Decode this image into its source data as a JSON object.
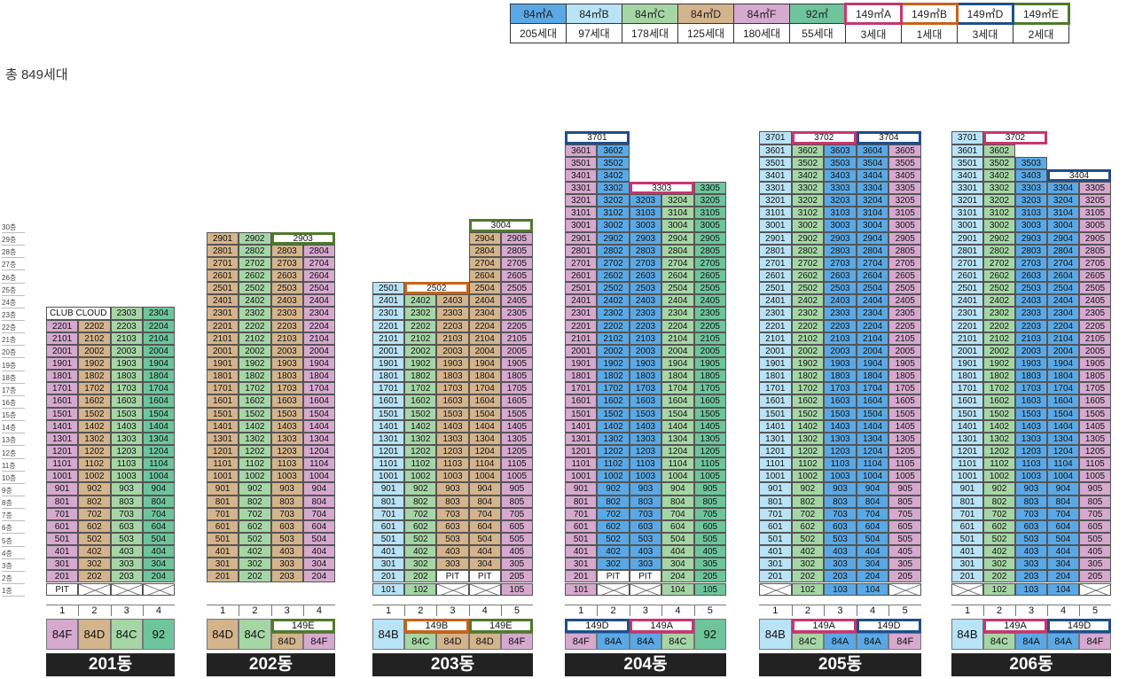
{
  "colors": {
    "84A": "#5aa9e6",
    "84B": "#b9e3f6",
    "84C": "#a6d6a6",
    "84D": "#d4b48c",
    "84F": "#d6a9cf",
    "92": "#6ec59c",
    "149A": "#c7366f",
    "149B": "#c8621a",
    "149D": "#1f4e8c",
    "149E": "#4f7a2b"
  },
  "legend": [
    {
      "type": "84A",
      "label": "84㎡A",
      "count": "205세대"
    },
    {
      "type": "84B",
      "label": "84㎡B",
      "count": "97세대"
    },
    {
      "type": "84C",
      "label": "84㎡C",
      "count": "178세대"
    },
    {
      "type": "84D",
      "label": "84㎡D",
      "count": "125세대"
    },
    {
      "type": "84F",
      "label": "84㎡F",
      "count": "180세대"
    },
    {
      "type": "92",
      "label": "92㎡",
      "count": "55세대"
    },
    {
      "type": "149A",
      "label": "149㎡A",
      "count": "3세대",
      "outline": true
    },
    {
      "type": "149B",
      "label": "149㎡B",
      "count": "1세대",
      "outline": true
    },
    {
      "type": "149D",
      "label": "149㎡D",
      "count": "3세대",
      "outline": true
    },
    {
      "type": "149E",
      "label": "149㎡E",
      "count": "2세대",
      "outline": true
    }
  ],
  "total": "총 849세대",
  "floor_labels": [
    "30층",
    "29층",
    "28층",
    "27층",
    "26층",
    "25층",
    "24층",
    "23층",
    "22층",
    "21층",
    "20층",
    "19층",
    "18층",
    "17층",
    "16층",
    "15층",
    "14층",
    "13층",
    "12층",
    "11층",
    "10층",
    "9층",
    "8층",
    "7층",
    "6층",
    "5층",
    "4층",
    "3층",
    "2층",
    "1층"
  ],
  "buildings": [
    {
      "name": "201동",
      "lines": [
        "1",
        "2",
        "3",
        "4"
      ],
      "types": [
        "84F",
        "84D",
        "84C",
        "92"
      ],
      "tops": [
        22,
        22,
        23,
        23
      ],
      "bottom": [
        [
          "PIT"
        ],
        [
          "X"
        ],
        [
          "X"
        ],
        [
          "X"
        ]
      ],
      "specials": [
        {
          "text": "CLUB CLOUD",
          "floor": 23,
          "from": 0,
          "to": 1,
          "kind": "club"
        }
      ],
      "labels": [
        {
          "text": "84F",
          "from": 0,
          "to": 0,
          "type": "84F"
        },
        {
          "text": "84D",
          "from": 1,
          "to": 1,
          "type": "84D"
        },
        {
          "text": "84C",
          "from": 2,
          "to": 2,
          "type": "84C"
        },
        {
          "text": "92",
          "from": 3,
          "to": 3,
          "type": "92"
        }
      ]
    },
    {
      "name": "202동",
      "lines": [
        "1",
        "2",
        "3",
        "4"
      ],
      "types": [
        "84D",
        "84C",
        "84D",
        "84F"
      ],
      "tops": [
        29,
        29,
        28,
        28
      ],
      "bottom": [
        [],
        [],
        [],
        []
      ],
      "start": 2,
      "specials": [
        {
          "text": "2903",
          "floor": 29,
          "from": 2,
          "to": 3,
          "kind": "149E"
        }
      ],
      "labels": [
        {
          "text": "84D",
          "from": 0,
          "to": 0,
          "type": "84D"
        },
        {
          "text": "84C",
          "from": 1,
          "to": 1,
          "type": "84C"
        },
        {
          "text": "149E",
          "from": 2,
          "to": 3,
          "type": "149E",
          "outline": true,
          "sub": [
            "84D",
            "84F"
          ]
        }
      ]
    },
    {
      "name": "203동",
      "lines": [
        "1",
        "2",
        "3",
        "4",
        "5"
      ],
      "types": [
        "84B",
        "84C",
        "84D",
        "84D",
        "84F"
      ],
      "tops": [
        25,
        24,
        24,
        29,
        29
      ],
      "bottom": [
        [
          "101"
        ],
        [
          "102"
        ],
        [
          "X"
        ],
        [
          "X"
        ],
        [
          "105"
        ]
      ],
      "row2": [
        "201",
        "202",
        "PIT",
        "PIT",
        "205"
      ],
      "specials": [
        {
          "text": "2502",
          "floor": 25,
          "from": 1,
          "to": 2,
          "kind": "149B"
        },
        {
          "text": "3004",
          "floor": 30,
          "from": 3,
          "to": 4,
          "kind": "149E"
        }
      ],
      "labels": [
        {
          "text": "84B",
          "from": 0,
          "to": 0,
          "type": "84B"
        },
        {
          "text": "149B",
          "from": 1,
          "to": 2,
          "type": "149B",
          "outline": true,
          "sub": [
            "84C",
            "84D"
          ]
        },
        {
          "text": "149E",
          "from": 3,
          "to": 4,
          "type": "149E",
          "outline": true,
          "sub": [
            "84D",
            "84F"
          ]
        }
      ]
    },
    {
      "name": "204동",
      "lines": [
        "1",
        "2",
        "3",
        "4",
        "5"
      ],
      "types": [
        "84F",
        "84A",
        "84A",
        "84C",
        "92"
      ],
      "tops": [
        36,
        36,
        32,
        32,
        33
      ],
      "bottom": [
        [
          "101"
        ],
        [
          "X"
        ],
        [
          "X"
        ],
        [
          "104"
        ],
        [
          "105"
        ]
      ],
      "row2": [
        "201",
        "PIT",
        "PIT",
        "204",
        "205"
      ],
      "specials": [
        {
          "text": "3701",
          "floor": 37,
          "from": 0,
          "to": 1,
          "kind": "149D"
        },
        {
          "text": "3303",
          "floor": 33,
          "from": 2,
          "to": 3,
          "kind": "149A"
        }
      ],
      "labels": [
        {
          "text": "149D",
          "from": 0,
          "to": 1,
          "type": "149D",
          "outline": true,
          "sub": [
            "84F",
            "84A"
          ]
        },
        {
          "text": "149A",
          "from": 2,
          "to": 3,
          "type": "149A",
          "outline": true,
          "sub": [
            "84A",
            "84C"
          ]
        },
        {
          "text": "92",
          "from": 4,
          "to": 4,
          "type": "92"
        }
      ]
    },
    {
      "name": "205동",
      "lines": [
        "1",
        "2",
        "3",
        "4",
        "5"
      ],
      "types": [
        "84B",
        "84C",
        "84A",
        "84A",
        "84F"
      ],
      "tops": [
        37,
        36,
        36,
        36,
        36
      ],
      "bottom": [
        [
          "X"
        ],
        [
          "102"
        ],
        [
          "103"
        ],
        [
          "104"
        ],
        [
          "X"
        ]
      ],
      "specials": [
        {
          "text": "3702",
          "floor": 37,
          "from": 1,
          "to": 2,
          "kind": "149A"
        },
        {
          "text": "3704",
          "floor": 37,
          "from": 3,
          "to": 4,
          "kind": "149D"
        }
      ],
      "labels": [
        {
          "text": "84B",
          "from": 0,
          "to": 0,
          "type": "84B"
        },
        {
          "text": "149A",
          "from": 1,
          "to": 2,
          "type": "149A",
          "outline": true,
          "sub": [
            "84C",
            "84A"
          ]
        },
        {
          "text": "149D",
          "from": 3,
          "to": 4,
          "type": "149D",
          "outline": true,
          "sub": [
            "84A",
            "84F"
          ]
        }
      ]
    },
    {
      "name": "206동",
      "lines": [
        "1",
        "2",
        "3",
        "4",
        "5"
      ],
      "types": [
        "84B",
        "84C",
        "84A",
        "84A",
        "84F"
      ],
      "tops": [
        37,
        36,
        35,
        33,
        33
      ],
      "bottom": [
        [
          "X"
        ],
        [
          "102"
        ],
        [
          "103"
        ],
        [
          "104"
        ],
        [
          "X"
        ]
      ],
      "specials": [
        {
          "text": "3702",
          "floor": 37,
          "from": 1,
          "to": 2,
          "kind": "149A"
        },
        {
          "text": "3404",
          "floor": 34,
          "from": 3,
          "to": 4,
          "kind": "149D"
        }
      ],
      "labels": [
        {
          "text": "84B",
          "from": 0,
          "to": 0,
          "type": "84B"
        },
        {
          "text": "149A",
          "from": 1,
          "to": 2,
          "type": "149A",
          "outline": true,
          "sub": [
            "84C",
            "84A"
          ]
        },
        {
          "text": "149D",
          "from": 3,
          "to": 4,
          "type": "149D",
          "outline": true,
          "sub": [
            "84A",
            "84F"
          ]
        }
      ]
    }
  ]
}
